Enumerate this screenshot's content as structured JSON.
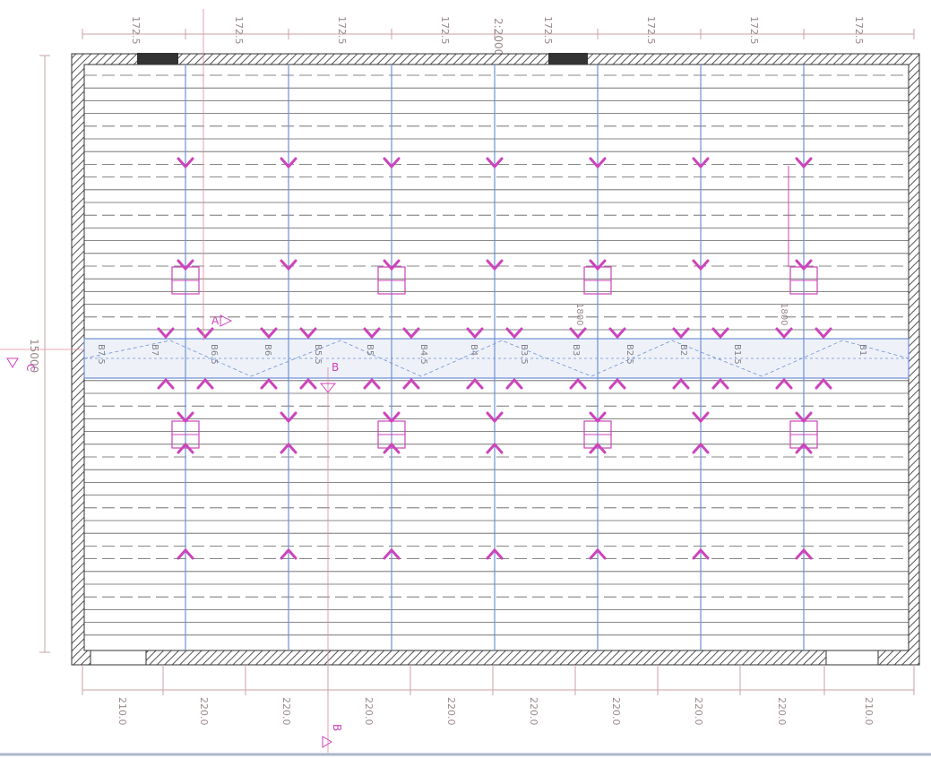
{
  "dimensions": {
    "top_spans": [
      "172.5",
      "172.5",
      "172.5",
      "172.5",
      "172.5",
      "172.5",
      "172.5",
      "172.5"
    ],
    "top_total": "2:2000",
    "bottom_spans": [
      "210.0",
      "220.0",
      "220.0",
      "220.0",
      "220.0",
      "220.0",
      "220.0",
      "220.0",
      "220.0",
      "210.0"
    ],
    "left_total": "15000",
    "side_label": "1800"
  },
  "section_marks": {
    "A": "A",
    "B": "B",
    "B_top": "B",
    "C": "C"
  },
  "beams": {
    "labels": [
      "B7.5",
      "B7",
      "B6.5",
      "B6",
      "B5.5",
      "B5",
      "B4.5",
      "B4",
      "B3.5",
      "B3",
      "B2.5",
      "B2",
      "B1.5",
      "B1"
    ]
  },
  "colors": {
    "paper": "#ffffff",
    "wall_hatch": "#555555",
    "slab_line": "#2b2b2b",
    "column_line": "#6f8fd6",
    "marker": "#cc44bb",
    "dimension": "#c9a0a6",
    "beam_band": "#d6e0ef"
  }
}
